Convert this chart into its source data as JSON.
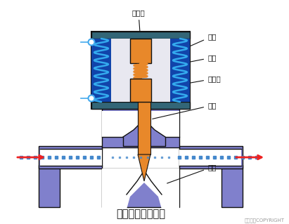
{
  "title": "直接控制式电磁阀",
  "copyright": "东方仿真COPYRIGHT",
  "labels": {
    "dingtiexin": "定铁心",
    "tanhuang": "弹簧",
    "xianjuan": "线圈",
    "dongtiexin": "动铁心",
    "faxin": "阀芯",
    "fazuo": "阀座"
  },
  "colors": {
    "background": "#ffffff",
    "purple": "#8080cc",
    "purple_dark": "#5555aa",
    "coil_outer": "#222244",
    "coil_blue": "#5588cc",
    "coil_bar": "#445577",
    "spring": "#33aaee",
    "orange": "#e8882a",
    "white": "#ffffff",
    "black": "#111111",
    "arrow_red": "#ee2222",
    "dot_blue": "#4488cc",
    "circle_edge": "#44aaee",
    "teal": "#336688"
  },
  "figsize": [
    4.11,
    3.19
  ],
  "dpi": 100
}
